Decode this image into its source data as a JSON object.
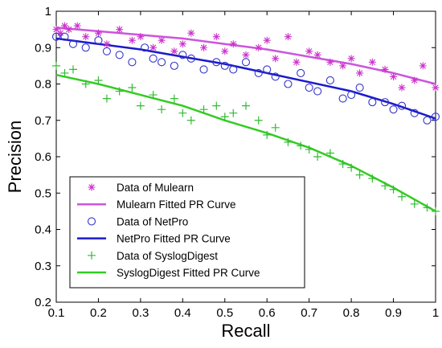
{
  "chart_data": {
    "type": "scatter",
    "xlabel": "Recall",
    "ylabel": "Precision",
    "xlim": [
      0.1,
      1.0
    ],
    "ylim": [
      0.2,
      1.0
    ],
    "xticks": [
      "0.1",
      "0.2",
      "0.3",
      "0.4",
      "0.5",
      "0.6",
      "0.7",
      "0.8",
      "0.9",
      "1"
    ],
    "yticks": [
      "0.2",
      "0.3",
      "0.4",
      "0.5",
      "0.6",
      "0.7",
      "0.8",
      "0.9",
      "1"
    ],
    "grid": false,
    "legend_position": "bottom-left",
    "series": [
      {
        "name": "Data of Mulearn",
        "kind": "scatter",
        "marker": "asterisk",
        "color": "#cc33cc",
        "x": [
          0.1,
          0.11,
          0.12,
          0.13,
          0.15,
          0.17,
          0.2,
          0.22,
          0.25,
          0.28,
          0.3,
          0.33,
          0.35,
          0.38,
          0.4,
          0.42,
          0.45,
          0.48,
          0.5,
          0.52,
          0.55,
          0.58,
          0.6,
          0.62,
          0.65,
          0.67,
          0.7,
          0.72,
          0.75,
          0.78,
          0.8,
          0.82,
          0.85,
          0.88,
          0.9,
          0.92,
          0.95,
          0.97,
          1.0
        ],
        "y": [
          0.95,
          0.94,
          0.96,
          0.95,
          0.96,
          0.93,
          0.94,
          0.91,
          0.95,
          0.92,
          0.93,
          0.9,
          0.92,
          0.89,
          0.91,
          0.94,
          0.9,
          0.93,
          0.89,
          0.91,
          0.88,
          0.9,
          0.92,
          0.87,
          0.93,
          0.86,
          0.89,
          0.88,
          0.86,
          0.85,
          0.87,
          0.83,
          0.86,
          0.84,
          0.82,
          0.79,
          0.81,
          0.85,
          0.79
        ]
      },
      {
        "name": "Mulearn Fitted PR Curve",
        "kind": "line",
        "color": "#cc55dd",
        "x": [
          0.1,
          0.2,
          0.3,
          0.4,
          0.5,
          0.6,
          0.7,
          0.8,
          0.9,
          1.0
        ],
        "y": [
          0.955,
          0.945,
          0.935,
          0.925,
          0.91,
          0.895,
          0.875,
          0.855,
          0.83,
          0.8
        ]
      },
      {
        "name": "Data of NetPro",
        "kind": "scatter",
        "marker": "circle",
        "color": "#3333cc",
        "x": [
          0.1,
          0.12,
          0.14,
          0.17,
          0.2,
          0.22,
          0.25,
          0.28,
          0.31,
          0.33,
          0.35,
          0.38,
          0.4,
          0.42,
          0.45,
          0.48,
          0.5,
          0.52,
          0.55,
          0.58,
          0.6,
          0.62,
          0.65,
          0.68,
          0.7,
          0.72,
          0.75,
          0.78,
          0.8,
          0.82,
          0.85,
          0.88,
          0.9,
          0.92,
          0.95,
          0.98,
          1.0
        ],
        "y": [
          0.93,
          0.93,
          0.91,
          0.9,
          0.92,
          0.89,
          0.88,
          0.86,
          0.9,
          0.87,
          0.86,
          0.85,
          0.88,
          0.87,
          0.84,
          0.86,
          0.85,
          0.84,
          0.86,
          0.83,
          0.84,
          0.82,
          0.8,
          0.83,
          0.79,
          0.78,
          0.81,
          0.76,
          0.77,
          0.79,
          0.75,
          0.75,
          0.73,
          0.74,
          0.72,
          0.7,
          0.71
        ]
      },
      {
        "name": "NetPro Fitted PR Curve",
        "kind": "line",
        "color": "#1a1acc",
        "x": [
          0.1,
          0.2,
          0.3,
          0.4,
          0.5,
          0.6,
          0.7,
          0.8,
          0.9,
          1.0
        ],
        "y": [
          0.925,
          0.91,
          0.895,
          0.875,
          0.855,
          0.83,
          0.805,
          0.78,
          0.745,
          0.705
        ]
      },
      {
        "name": "Data of SyslogDigest",
        "kind": "scatter",
        "marker": "plus",
        "color": "#33bb33",
        "x": [
          0.1,
          0.12,
          0.14,
          0.17,
          0.2,
          0.22,
          0.25,
          0.28,
          0.3,
          0.33,
          0.35,
          0.38,
          0.4,
          0.42,
          0.45,
          0.48,
          0.5,
          0.52,
          0.55,
          0.58,
          0.6,
          0.62,
          0.65,
          0.68,
          0.7,
          0.72,
          0.75,
          0.78,
          0.8,
          0.82,
          0.85,
          0.88,
          0.9,
          0.92,
          0.95,
          0.98,
          1.0
        ],
        "y": [
          0.85,
          0.83,
          0.84,
          0.8,
          0.81,
          0.76,
          0.78,
          0.79,
          0.74,
          0.77,
          0.73,
          0.76,
          0.72,
          0.7,
          0.73,
          0.74,
          0.71,
          0.72,
          0.74,
          0.7,
          0.66,
          0.68,
          0.64,
          0.63,
          0.62,
          0.6,
          0.61,
          0.58,
          0.57,
          0.55,
          0.54,
          0.52,
          0.51,
          0.49,
          0.47,
          0.46,
          0.45
        ]
      },
      {
        "name": "SyslogDigest Fitted PR Curve",
        "kind": "line",
        "color": "#33cc22",
        "x": [
          0.1,
          0.2,
          0.3,
          0.4,
          0.5,
          0.6,
          0.7,
          0.8,
          0.9,
          1.0
        ],
        "y": [
          0.825,
          0.8,
          0.77,
          0.74,
          0.7,
          0.665,
          0.625,
          0.575,
          0.515,
          0.45
        ]
      }
    ]
  }
}
